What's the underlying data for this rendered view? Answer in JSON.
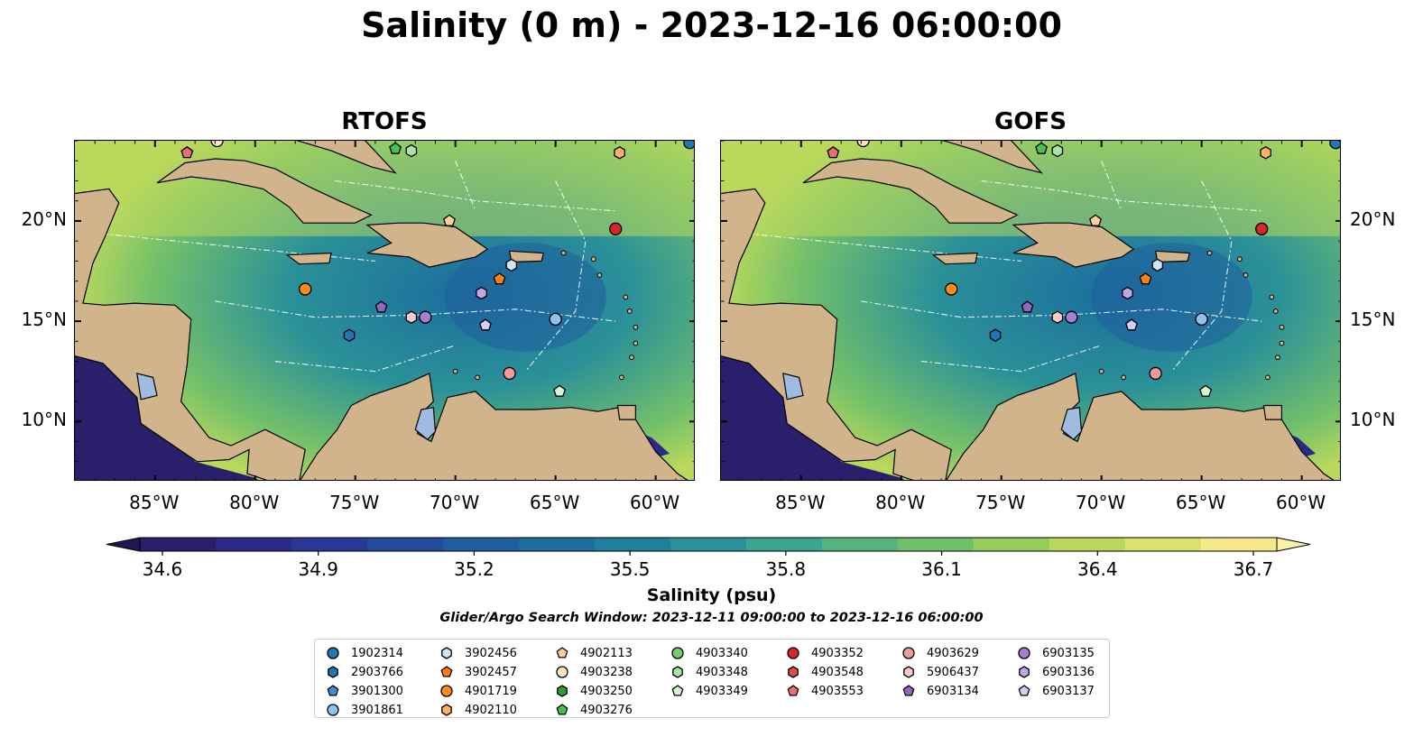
{
  "title": "Salinity (0 m) - 2023-12-16 06:00:00",
  "panels": [
    {
      "title": "RTOFS"
    },
    {
      "title": "GOFS"
    }
  ],
  "axes": {
    "lon_labels": [
      "85°W",
      "80°W",
      "75°W",
      "70°W",
      "65°W",
      "60°W"
    ],
    "lon_values": [
      -85,
      -80,
      -75,
      -70,
      -65,
      -60
    ],
    "lat_labels": [
      "20°N",
      "15°N",
      "10°N"
    ],
    "lat_values": [
      20,
      15,
      10
    ],
    "lon_range": [
      -89,
      -58
    ],
    "lat_range": [
      7,
      24
    ]
  },
  "colorbar": {
    "title": "Salinity (psu)",
    "tick_labels": [
      "34.6",
      "34.9",
      "35.2",
      "35.5",
      "35.8",
      "36.1",
      "36.4",
      "36.7"
    ],
    "tick_values": [
      34.6,
      34.9,
      35.2,
      35.5,
      35.8,
      36.1,
      36.4,
      36.7
    ],
    "colors": [
      "#2a1f6a",
      "#2c2a86",
      "#2a3796",
      "#234c9d",
      "#1f5e9f",
      "#1c6e9e",
      "#20809c",
      "#2b9198",
      "#3da391",
      "#56b37d",
      "#73c06a",
      "#96cd5e",
      "#bad85c",
      "#dbe26b",
      "#f4e98c"
    ]
  },
  "search_window": "Glider/Argo Search Window: 2023-12-11 09:00:00 to 2023-12-16 06:00:00",
  "legend": [
    {
      "label": "1902314",
      "shape": "circle",
      "color": "#1f77b4"
    },
    {
      "label": "2903766",
      "shape": "hexagon",
      "color": "#1f77b4"
    },
    {
      "label": "3901300",
      "shape": "pentagon",
      "color": "#3a8fd6"
    },
    {
      "label": "3901861",
      "shape": "circle",
      "color": "#8fc3ea"
    },
    {
      "label": "3902456",
      "shape": "hexagon",
      "color": "#cfe6f7"
    },
    {
      "label": "3902457",
      "shape": "pentagon",
      "color": "#ff7f0e"
    },
    {
      "label": "4901719",
      "shape": "circle",
      "color": "#ff8c1a"
    },
    {
      "label": "4902110",
      "shape": "hexagon",
      "color": "#ffb266"
    },
    {
      "label": "4902113",
      "shape": "pentagon",
      "color": "#ffcf99"
    },
    {
      "label": "4903238",
      "shape": "circle",
      "color": "#ffe3c4"
    },
    {
      "label": "4903250",
      "shape": "hexagon",
      "color": "#2ca02c"
    },
    {
      "label": "4903276",
      "shape": "pentagon",
      "color": "#4cc04c"
    },
    {
      "label": "4903340",
      "shape": "circle",
      "color": "#6fcf6f"
    },
    {
      "label": "4903348",
      "shape": "hexagon",
      "color": "#a8e6a8"
    },
    {
      "label": "4903349",
      "shape": "pentagon",
      "color": "#d4f5d4"
    },
    {
      "label": "4903352",
      "shape": "circle",
      "color": "#d62728"
    },
    {
      "label": "4903548",
      "shape": "hexagon",
      "color": "#e04a4b"
    },
    {
      "label": "4903553",
      "shape": "pentagon",
      "color": "#eb6e6f"
    },
    {
      "label": "4903629",
      "shape": "circle",
      "color": "#f29a9a"
    },
    {
      "label": "5906437",
      "shape": "hexagon",
      "color": "#f9cccc"
    },
    {
      "label": "6903134",
      "shape": "pentagon",
      "color": "#9467bd"
    },
    {
      "label": "6903135",
      "shape": "circle",
      "color": "#a77fd0"
    },
    {
      "label": "6903136",
      "shape": "hexagon",
      "color": "#c3a6e6"
    },
    {
      "label": "6903137",
      "shape": "pentagon",
      "color": "#dccaf5"
    }
  ],
  "markers": [
    {
      "id": "1902314",
      "lon": -58.3,
      "lat": 23.9
    },
    {
      "id": "4903553",
      "lon": -83.4,
      "lat": 23.4
    },
    {
      "id": "4903238",
      "lon": -81.9,
      "lat": 24.0
    },
    {
      "id": "4903276",
      "lon": -73.0,
      "lat": 23.6
    },
    {
      "id": "4903348",
      "lon": -72.2,
      "lat": 23.5
    },
    {
      "id": "4902110",
      "lon": -61.8,
      "lat": 23.4
    },
    {
      "id": "4902113",
      "lon": -70.3,
      "lat": 20.0
    },
    {
      "id": "4903352",
      "lon": -62.0,
      "lat": 19.6
    },
    {
      "id": "3902456",
      "lon": -67.2,
      "lat": 17.8
    },
    {
      "id": "3902457",
      "lon": -67.8,
      "lat": 17.1
    },
    {
      "id": "4901719",
      "lon": -77.5,
      "lat": 16.6
    },
    {
      "id": "6903136",
      "lon": -68.7,
      "lat": 16.4
    },
    {
      "id": "6903134",
      "lon": -73.7,
      "lat": 15.7
    },
    {
      "id": "5906437",
      "lon": -72.2,
      "lat": 15.2
    },
    {
      "id": "6903135",
      "lon": -71.5,
      "lat": 15.2
    },
    {
      "id": "6903137",
      "lon": -68.5,
      "lat": 14.8
    },
    {
      "id": "3901861",
      "lon": -65.0,
      "lat": 15.1
    },
    {
      "id": "2903766",
      "lon": -75.3,
      "lat": 14.3
    },
    {
      "id": "4903629",
      "lon": -67.3,
      "lat": 12.4
    },
    {
      "id": "4903349",
      "lon": -64.8,
      "lat": 11.5
    }
  ]
}
